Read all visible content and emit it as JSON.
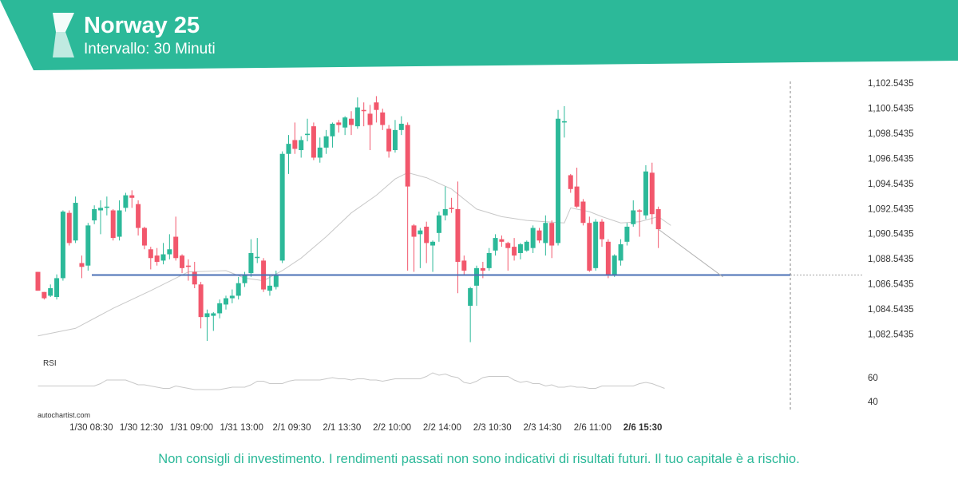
{
  "header": {
    "title": "Norway 25",
    "subtitle": "Intervallo: 30 Minuti"
  },
  "colors": {
    "brand": "#2cb999",
    "bull": "#2cb999",
    "bear": "#f2576c",
    "level_line": "#4a6fb5"
  },
  "icons": {
    "logo": "autochartist-logo-icon"
  },
  "watermark": "autochartist.com",
  "disclaimer": "Non consigli di investimento. I rendimenti passati non sono indicativi di risultati futuri. Il tuo capitale è a rischio.",
  "chart_data": {
    "type": "candlestick",
    "y_ticks": [
      "1,102.5435",
      "1,100.5435",
      "1,098.5435",
      "1,096.5435",
      "1,094.5435",
      "1,092.5435",
      "1,090.5435",
      "1,088.5435",
      "1,086.5435",
      "1,084.5435",
      "1,082.5435"
    ],
    "y_tick_values": [
      1102.5435,
      1100.5435,
      1098.5435,
      1096.5435,
      1094.5435,
      1092.5435,
      1090.5435,
      1088.5435,
      1086.5435,
      1084.5435,
      1082.5435
    ],
    "x_ticks": [
      "1/30 08:30",
      "1/30 12:30",
      "1/31 09:00",
      "1/31 13:00",
      "2/1 09:30",
      "2/1 13:30",
      "2/2 10:00",
      "2/2 14:00",
      "2/3 10:30",
      "2/3 14:30",
      "2/6 11:00",
      "2/6 15:30"
    ],
    "x_tick_index": [
      8,
      16,
      24,
      32,
      40,
      48,
      56,
      64,
      72,
      80,
      88,
      96
    ],
    "candles": [
      [
        1087.5,
        1086.0,
        1087.5,
        1086.0
      ],
      [
        1085.9,
        1085.4,
        1085.9,
        1085.3
      ],
      [
        1085.6,
        1086.2,
        1086.5,
        1085.5
      ],
      [
        1085.5,
        1087.0,
        1087.3,
        1085.3
      ],
      [
        1087.0,
        1092.3,
        1092.4,
        1086.8
      ],
      [
        1092.2,
        1089.8,
        1092.4,
        1089.6
      ],
      [
        1090.0,
        1093.0,
        1093.5,
        1089.8
      ],
      [
        1088.2,
        1087.9,
        1088.8,
        1087.0
      ],
      [
        1088.0,
        1091.2,
        1091.4,
        1087.6
      ],
      [
        1091.6,
        1092.5,
        1092.8,
        1091.3
      ],
      [
        1092.4,
        1092.6,
        1093.2,
        1090.5
      ],
      [
        1092.6,
        1092.7,
        1093.5,
        1092.0
      ],
      [
        1092.4,
        1090.2,
        1092.5,
        1090.0
      ],
      [
        1090.3,
        1092.4,
        1093.2,
        1090.0
      ],
      [
        1092.6,
        1093.6,
        1093.8,
        1092.3
      ],
      [
        1093.6,
        1093.4,
        1094.0,
        1092.6
      ],
      [
        1092.9,
        1091.0,
        1093.2,
        1090.4
      ],
      [
        1091.0,
        1089.6,
        1091.1,
        1089.3
      ],
      [
        1089.3,
        1088.6,
        1089.5,
        1087.7
      ],
      [
        1088.8,
        1088.3,
        1089.4,
        1088.0
      ],
      [
        1088.4,
        1088.9,
        1089.8,
        1088.1
      ],
      [
        1088.9,
        1089.3,
        1090.5,
        1088.5
      ],
      [
        1090.3,
        1088.6,
        1091.9,
        1088.4
      ],
      [
        1088.8,
        1087.8,
        1088.9,
        1087.4
      ],
      [
        1088.0,
        1087.9,
        1088.5,
        1086.8
      ],
      [
        1087.5,
        1086.5,
        1088.3,
        1086.2
      ],
      [
        1086.5,
        1083.9,
        1086.7,
        1083.0
      ],
      [
        1083.9,
        1084.2,
        1084.5,
        1082.0
      ],
      [
        1084.0,
        1084.2,
        1084.3,
        1082.8
      ],
      [
        1084.2,
        1085.0,
        1085.3,
        1083.8
      ],
      [
        1084.9,
        1085.4,
        1085.6,
        1084.5
      ],
      [
        1085.4,
        1085.6,
        1086.1,
        1085.0
      ],
      [
        1085.6,
        1086.6,
        1087.1,
        1085.3
      ],
      [
        1086.6,
        1087.2,
        1087.5,
        1086.3
      ],
      [
        1087.4,
        1089.0,
        1090.1,
        1087.1
      ],
      [
        1088.6,
        1088.7,
        1090.2,
        1088.2
      ],
      [
        1088.4,
        1086.1,
        1088.6,
        1085.9
      ],
      [
        1086.0,
        1086.4,
        1087.3,
        1085.6
      ],
      [
        1086.3,
        1087.3,
        1087.6,
        1086.1
      ],
      [
        1088.4,
        1096.9,
        1097.1,
        1088.2
      ],
      [
        1096.9,
        1097.7,
        1098.4,
        1095.3
      ],
      [
        1098.0,
        1097.3,
        1099.4,
        1096.9
      ],
      [
        1097.2,
        1098.0,
        1098.3,
        1096.6
      ],
      [
        1098.4,
        1098.5,
        1099.7,
        1097.9
      ],
      [
        1099.1,
        1096.6,
        1099.4,
        1096.4
      ],
      [
        1096.6,
        1097.4,
        1098.2,
        1096.2
      ],
      [
        1097.4,
        1098.3,
        1098.8,
        1096.9
      ],
      [
        1098.3,
        1099.3,
        1099.4,
        1097.4
      ],
      [
        1099.4,
        1099.2,
        1099.6,
        1098.6
      ],
      [
        1099.0,
        1099.8,
        1099.9,
        1098.4
      ],
      [
        1099.7,
        1099.2,
        1100.3,
        1098.4
      ],
      [
        1099.1,
        1100.6,
        1101.4,
        1098.9
      ],
      [
        1100.4,
        1100.3,
        1101.0,
        1099.1
      ],
      [
        1100.1,
        1099.2,
        1100.8,
        1097.2
      ],
      [
        1101.0,
        1100.4,
        1101.5,
        1099.4
      ],
      [
        1100.2,
        1099.2,
        1100.5,
        1098.8
      ],
      [
        1098.9,
        1097.1,
        1099.2,
        1096.6
      ],
      [
        1097.2,
        1098.8,
        1099.6,
        1097.0
      ],
      [
        1098.8,
        1099.3,
        1099.9,
        1098.4
      ],
      [
        1099.2,
        1094.3,
        1099.4,
        1087.6
      ],
      [
        1091.2,
        1090.3,
        1091.3,
        1087.5
      ],
      [
        1090.5,
        1090.8,
        1091.0,
        1087.8
      ],
      [
        1091.1,
        1089.8,
        1091.5,
        1088.2
      ],
      [
        1089.6,
        1089.9,
        1090.0,
        1087.5
      ],
      [
        1090.6,
        1092.0,
        1092.3,
        1089.9
      ],
      [
        1092.0,
        1092.5,
        1094.3,
        1091.6
      ],
      [
        1092.6,
        1092.5,
        1093.4,
        1092.2
      ],
      [
        1092.5,
        1088.3,
        1094.7,
        1085.8
      ],
      [
        1088.4,
        1087.6,
        1088.8,
        1087.2
      ],
      [
        1084.8,
        1086.2,
        1086.3,
        1081.9
      ],
      [
        1086.4,
        1087.8,
        1088.0,
        1084.8
      ],
      [
        1087.8,
        1087.6,
        1088.3,
        1087.0
      ],
      [
        1087.8,
        1089.0,
        1089.4,
        1087.6
      ],
      [
        1089.2,
        1090.2,
        1090.5,
        1088.8
      ],
      [
        1090.1,
        1089.9,
        1090.4,
        1089.5
      ],
      [
        1089.8,
        1089.4,
        1089.9,
        1087.6
      ],
      [
        1089.5,
        1088.8,
        1090.2,
        1088.4
      ],
      [
        1089.0,
        1089.7,
        1089.8,
        1088.5
      ],
      [
        1089.2,
        1089.9,
        1090.0,
        1089.1
      ],
      [
        1089.4,
        1091.0,
        1091.2,
        1089.0
      ],
      [
        1090.8,
        1090.0,
        1091.0,
        1089.8
      ],
      [
        1089.8,
        1091.4,
        1092.0,
        1088.8
      ],
      [
        1091.4,
        1089.6,
        1091.6,
        1088.6
      ],
      [
        1089.8,
        1099.7,
        1100.4,
        1089.6
      ],
      [
        1099.4,
        1099.5,
        1100.7,
        1098.2
      ],
      [
        1095.2,
        1094.1,
        1095.3,
        1093.8
      ],
      [
        1094.3,
        1092.7,
        1095.8,
        1092.6
      ],
      [
        1093.1,
        1091.4,
        1093.3,
        1091.2
      ],
      [
        1091.4,
        1087.6,
        1091.9,
        1087.5
      ],
      [
        1087.8,
        1091.5,
        1091.7,
        1087.6
      ],
      [
        1091.5,
        1090.1,
        1091.7,
        1089.5
      ],
      [
        1089.9,
        1087.3,
        1090.1,
        1087.0
      ],
      [
        1087.3,
        1088.8,
        1088.9,
        1087.1
      ],
      [
        1088.4,
        1089.7,
        1090.1,
        1088.0
      ],
      [
        1089.9,
        1091.1,
        1091.4,
        1089.6
      ],
      [
        1091.3,
        1092.4,
        1093.2,
        1091.1
      ],
      [
        1092.4,
        1092.3,
        1092.5,
        1090.3
      ],
      [
        1092.0,
        1095.5,
        1096.0,
        1091.7
      ],
      [
        1095.4,
        1092.1,
        1096.2,
        1091.3
      ],
      [
        1092.5,
        1090.9,
        1092.7,
        1089.4
      ]
    ],
    "moving_average": [
      [
        0,
        1082.4
      ],
      [
        6,
        1083.0
      ],
      [
        12,
        1084.6
      ],
      [
        18,
        1086.0
      ],
      [
        24,
        1087.5
      ],
      [
        30,
        1087.6
      ],
      [
        33,
        1087.0
      ],
      [
        36,
        1086.8
      ],
      [
        39,
        1087.6
      ],
      [
        42,
        1088.6
      ],
      [
        46,
        1090.3
      ],
      [
        50,
        1092.2
      ],
      [
        54,
        1093.6
      ],
      [
        57,
        1094.9
      ],
      [
        59,
        1095.4
      ],
      [
        62,
        1095.0
      ],
      [
        66,
        1094.1
      ],
      [
        70,
        1092.5
      ],
      [
        74,
        1091.9
      ],
      [
        78,
        1091.6
      ],
      [
        81,
        1091.5
      ],
      [
        84,
        1091.4
      ],
      [
        85,
        1092.6
      ],
      [
        88,
        1092.3
      ],
      [
        90,
        1091.9
      ],
      [
        93,
        1091.4
      ],
      [
        96,
        1091.5
      ],
      [
        99,
        1091.9
      ],
      [
        101,
        1091.2
      ]
    ],
    "level": 1087.25,
    "projection": {
      "from_index": 99,
      "from_value": 1090.9,
      "to_index": 106,
      "to_value": 1087.1
    },
    "rsi": {
      "label": "RSI",
      "ticks": [
        60,
        40
      ],
      "range": [
        30,
        85
      ],
      "values": [
        53,
        53,
        53,
        53,
        53,
        53,
        53,
        53,
        53,
        53,
        55,
        58,
        58,
        58,
        58,
        56,
        54,
        54,
        53,
        52,
        51,
        51,
        53,
        52,
        51,
        50,
        50,
        50,
        50,
        50,
        51,
        52,
        52,
        52,
        54,
        57,
        57,
        55,
        55,
        55,
        57,
        58,
        58,
        58,
        58,
        58,
        59,
        60,
        59,
        59,
        58,
        59,
        59,
        58,
        58,
        57,
        58,
        59,
        59,
        59,
        59,
        59,
        61,
        64,
        62,
        63,
        61,
        60,
        56,
        55,
        57,
        60,
        61,
        61,
        61,
        61,
        58,
        56,
        57,
        55,
        55,
        53,
        54,
        52,
        52,
        53,
        52,
        52,
        51,
        51,
        53,
        53,
        53,
        53,
        53,
        53,
        55,
        56,
        55,
        53,
        51
      ]
    }
  }
}
